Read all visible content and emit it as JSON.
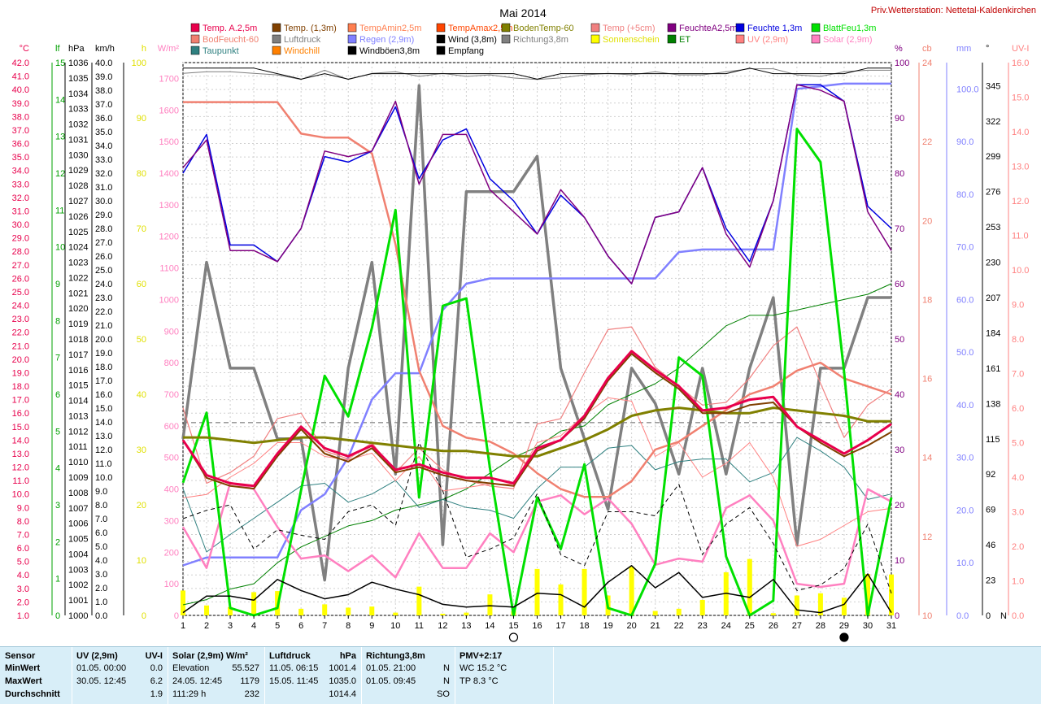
{
  "title": "Mai 2014",
  "station": "Priv.Wetterstation: Nettetal-Kaldenkirchen",
  "colors": {
    "temp_a": "#e8004c",
    "temp13": "#804000",
    "tempmin": "#ff7f50",
    "tempmax": "#ff4500",
    "boden": "#808000",
    "temp5": "#f08080",
    "feuchteA": "#800080",
    "feuchte13": "#0000e0",
    "blatt": "#00e000",
    "bodenfeucht": "#f08070",
    "luftdruck": "#7f7f7f",
    "regen": "#8080ff",
    "wind": "#000000",
    "richtung": "#808080",
    "sonne": "#ffff00",
    "et": "#008000",
    "uv": "#ff8080",
    "solar": "#ff80c0",
    "taupunkt": "#2f8080",
    "windchill": "#ff8000",
    "boeen": "#000000",
    "empfang": "#000000"
  },
  "legend": [
    {
      "label": "Temp. A.2,5m",
      "color": "#e8004c"
    },
    {
      "label": "Temp. (1,3m)",
      "color": "#804000"
    },
    {
      "label": "TempAmin2,5m",
      "color": "#ff7f50"
    },
    {
      "label": "TempAmax2,5m",
      "color": "#ff4500"
    },
    {
      "label": "BodenTemp-60",
      "color": "#808000"
    },
    {
      "label": "Temp (+5cm)",
      "color": "#f08080"
    },
    {
      "label": "FeuchteA2,5m",
      "color": "#800080"
    },
    {
      "label": "Feuchte 1,3m",
      "color": "#0000e0"
    },
    {
      "label": "BlattFeu1,3m",
      "color": "#00e000"
    },
    {
      "label": "BodFeucht-60",
      "color": "#f08070"
    },
    {
      "label": "Luftdruck",
      "color": "#7f7f7f"
    },
    {
      "label": "Regen (2,9m)",
      "color": "#8080ff"
    },
    {
      "label": "Wind (3,8m)",
      "color": "#000000"
    },
    {
      "label": "Richtung3,8m",
      "color": "#808080"
    },
    {
      "label": "Sonnenschein",
      "color": "#ffff00"
    },
    {
      "label": "ET",
      "color": "#008000"
    },
    {
      "label": "UV (2,9m)",
      "color": "#ff8080"
    },
    {
      "label": "Solar (2,9m)",
      "color": "#ff80c0"
    },
    {
      "label": "Taupunkt",
      "color": "#2f8080"
    },
    {
      "label": "Windchill",
      "color": "#ff8000"
    },
    {
      "label": "Windböen3,8m",
      "color": "#000000"
    },
    {
      "label": "Empfang",
      "color": "#000000"
    }
  ],
  "axes": {
    "temp": {
      "unit": "°C",
      "min": 1,
      "max": 42,
      "step": 1,
      "color": "#e8004c",
      "labels": [
        "1.0",
        "2.0",
        "3.0",
        "4.0",
        "5.0",
        "6.0",
        "7.0",
        "8.0",
        "9.0",
        "10.0",
        "11.0",
        "12.0",
        "13.0",
        "14.0",
        "15.0",
        "16.0",
        "17.0",
        "18.0",
        "19.0",
        "20.0",
        "21.0",
        "22.0",
        "23.0",
        "24.0",
        "25.0",
        "26.0",
        "27.0",
        "28.0",
        "29.0",
        "30.0",
        "31.0",
        "32.0",
        "33.0",
        "34.0",
        "35.0",
        "36.0",
        "37.0",
        "38.0",
        "39.0",
        "40.0",
        "41.0",
        "42.0"
      ]
    },
    "lf": {
      "unit": "lf",
      "color": "#00a000",
      "labels": [
        "0",
        "1",
        "2",
        "3",
        "4",
        "5",
        "6",
        "7",
        "8",
        "9",
        "10",
        "11",
        "12",
        "13",
        "14",
        "15"
      ]
    },
    "hpa": {
      "unit": "hPa",
      "min": 1000,
      "max": 1036,
      "color": "#000000",
      "labels": [
        "1000",
        "1001",
        "1002",
        "1003",
        "1004",
        "1005",
        "1006",
        "1007",
        "1008",
        "1009",
        "1010",
        "1011",
        "1012",
        "1013",
        "1014",
        "1015",
        "1016",
        "1017",
        "1018",
        "1019",
        "1020",
        "1021",
        "1022",
        "1023",
        "1024",
        "1025",
        "1026",
        "1027",
        "1028",
        "1029",
        "1030",
        "1031",
        "1032",
        "1033",
        "1034",
        "1035",
        "1036"
      ]
    },
    "kmh": {
      "unit": "km/h",
      "color": "#000000",
      "labels": [
        "0.0",
        "1.0",
        "2.0",
        "3.0",
        "4.0",
        "5.0",
        "6.0",
        "7.0",
        "8.0",
        "9.0",
        "10.0",
        "11.0",
        "12.0",
        "13.0",
        "14.0",
        "15.0",
        "16.0",
        "17.0",
        "18.0",
        "19.0",
        "20.0",
        "21.0",
        "22.0",
        "23.0",
        "24.0",
        "25.0",
        "26.0",
        "27.0",
        "28.0",
        "29.0",
        "30.0",
        "31.0",
        "32.0",
        "33.0",
        "34.0",
        "35.0",
        "36.0",
        "37.0",
        "38.0",
        "39.0",
        "40.0"
      ]
    },
    "h": {
      "unit": "h",
      "color": "#e0e000",
      "labels": [
        "0",
        "10",
        "20",
        "30",
        "40",
        "50",
        "60",
        "70",
        "80",
        "90",
        "100"
      ]
    },
    "wm2": {
      "unit": "W/m²",
      "color": "#ff80c0",
      "labels": [
        "0",
        "100",
        "200",
        "300",
        "400",
        "500",
        "600",
        "700",
        "800",
        "900",
        "1000",
        "1100",
        "1200",
        "1300",
        "1400",
        "1500",
        "1600",
        "1700"
      ]
    },
    "pct": {
      "unit": "%",
      "color": "#800080",
      "labels": [
        "0",
        "10",
        "20",
        "30",
        "40",
        "50",
        "60",
        "70",
        "80",
        "90",
        "100"
      ]
    },
    "cb": {
      "unit": "cb",
      "color": "#f08070",
      "labels": [
        "10",
        "12",
        "14",
        "16",
        "18",
        "20",
        "22",
        "24"
      ]
    },
    "mm": {
      "unit": "mm",
      "color": "#8080ff",
      "labels": [
        "0.0",
        "10.0",
        "20.0",
        "30.0",
        "40.0",
        "50.0",
        "60.0",
        "70.0",
        "80.0",
        "90.0",
        "100.0"
      ]
    },
    "deg": {
      "unit": "°",
      "color": "#000000",
      "labels": [
        "0",
        "23",
        "46",
        "69",
        "92",
        "115",
        "138",
        "161",
        "184",
        "207",
        "230",
        "253",
        "276",
        "299",
        "322",
        "345"
      ],
      "n_label": "N"
    },
    "uvi": {
      "unit": "UV-I",
      "color": "#ff8080",
      "labels": [
        "0.0",
        "1.0",
        "2.0",
        "3.0",
        "4.0",
        "5.0",
        "6.0",
        "7.0",
        "8.0",
        "9.0",
        "10.0",
        "11.0",
        "12.0",
        "13.0",
        "14.0",
        "15.0",
        "16.0"
      ]
    }
  },
  "chart_data": {
    "type": "line",
    "title": "Mai 2014",
    "x_label": "",
    "x": [
      1,
      2,
      3,
      4,
      5,
      6,
      7,
      8,
      9,
      10,
      11,
      12,
      13,
      14,
      15,
      16,
      17,
      18,
      19,
      20,
      21,
      22,
      23,
      24,
      25,
      26,
      27,
      28,
      29,
      30,
      31
    ],
    "moon_symbols": [
      {
        "day": 15,
        "phase": "full"
      },
      {
        "day": 29,
        "phase": "new"
      }
    ],
    "series": [
      {
        "name": "Temp. A.2,5m",
        "axis": "temp",
        "values": [
          14.0,
          11.4,
          10.8,
          10.6,
          13.0,
          15.0,
          13.4,
          12.8,
          13.6,
          11.8,
          12.2,
          11.6,
          11.2,
          11.2,
          10.8,
          13.4,
          14.0,
          15.8,
          18.6,
          20.6,
          19.2,
          18.0,
          16.2,
          16.4,
          17.0,
          17.2,
          15.0,
          14.0,
          13.0,
          14.0,
          15.2
        ]
      },
      {
        "name": "Temp. (1,3m)",
        "axis": "temp",
        "values": [
          14.0,
          11.2,
          10.6,
          10.4,
          12.8,
          14.8,
          13.0,
          12.4,
          13.4,
          11.6,
          12.0,
          11.4,
          11.0,
          10.8,
          10.6,
          13.2,
          14.0,
          15.6,
          18.4,
          20.4,
          19.0,
          17.8,
          16.0,
          16.0,
          16.6,
          16.8,
          15.0,
          13.8,
          12.8,
          13.6,
          14.6
        ]
      },
      {
        "name": "BodenTemp-60",
        "axis": "temp",
        "values": [
          14.2,
          14.2,
          14.0,
          13.8,
          14.0,
          14.2,
          14.2,
          14.0,
          13.8,
          13.6,
          13.4,
          13.2,
          13.2,
          13.0,
          12.8,
          12.8,
          13.4,
          14.0,
          14.8,
          15.8,
          16.2,
          16.4,
          16.2,
          16.0,
          16.0,
          16.4,
          16.2,
          16.0,
          15.8,
          15.4,
          15.4
        ]
      },
      {
        "name": "Temp (+5cm)",
        "axis": "temp",
        "values": [
          16.4,
          10.8,
          11.6,
          12.8,
          15.6,
          16.0,
          13.2,
          12.6,
          13.8,
          11.6,
          13.4,
          11.8,
          11.0,
          10.6,
          10.4,
          15.2,
          15.6,
          19.0,
          22.2,
          22.4,
          19.4,
          18.0,
          16.6,
          16.8,
          18.6,
          21.0,
          22.4,
          18.2,
          14.2,
          16.6,
          17.8
        ]
      },
      {
        "name": "FeuchteA2,5m",
        "axis": "pct",
        "values": [
          81,
          86,
          66,
          66,
          64,
          70,
          84,
          83,
          84,
          93,
          78,
          87,
          87,
          77,
          73,
          69,
          77,
          72,
          65,
          60,
          72,
          73,
          81,
          69,
          63,
          75,
          96,
          95,
          93,
          73,
          66
        ]
      },
      {
        "name": "Feuchte 1,3m",
        "axis": "pct",
        "values": [
          80,
          87,
          67,
          67,
          64,
          70,
          83,
          82,
          84,
          92,
          79,
          86,
          88,
          79,
          75,
          69,
          76,
          72,
          65,
          60,
          72,
          73,
          81,
          70,
          64,
          75,
          96,
          96,
          93,
          74,
          70
        ]
      },
      {
        "name": "BlattFeu1,3m",
        "axis": "lf",
        "values": [
          3.6,
          5.5,
          0.2,
          0.0,
          0.2,
          3.4,
          6.5,
          5.4,
          7.8,
          11.0,
          3.2,
          8.4,
          8.6,
          4.0,
          0.0,
          3.2,
          1.8,
          4.1,
          0.2,
          0.0,
          1.4,
          7.0,
          6.5,
          1.6,
          0.0,
          0.4,
          13.2,
          12.3,
          6.6,
          0.0,
          3.2
        ]
      },
      {
        "name": "BodFeucht-60",
        "axis": "cb",
        "values": [
          23,
          23,
          23,
          23,
          23,
          22.2,
          22.1,
          22.1,
          21.7,
          19.4,
          16.2,
          14.8,
          14.5,
          14.4,
          14.1,
          13.6,
          13.2,
          13.0,
          13.0,
          13.4,
          14.2,
          14.4,
          14.8,
          15.2,
          15.6,
          15.8,
          16.2,
          16.4,
          16.0,
          15.8,
          15.6
        ]
      },
      {
        "name": "Luftdruck",
        "axis": "hpa",
        "values": [
          1035.3,
          1035.4,
          1035.4,
          1035.3,
          1035.2,
          1034.9,
          1035.5,
          1034.9,
          1035.3,
          1035.4,
          1035.1,
          1035.3,
          1035.1,
          1035.2,
          1035.0,
          1034.9,
          1035.0,
          1035.2,
          1035.3,
          1035.2,
          1035.4,
          1035.2,
          1035.2,
          1035.4,
          1035.6,
          1035.6,
          1035.2,
          1035.1,
          1035.4,
          1035.5,
          1035.5
        ]
      },
      {
        "name": "Regen (2,9m)",
        "axis": "mm",
        "values": [
          9.5,
          11.0,
          11.0,
          11.0,
          11.0,
          20.0,
          23.0,
          30.0,
          41.0,
          46.0,
          46.0,
          58.0,
          63.0,
          64.0,
          64.0,
          64.0,
          64.0,
          64.0,
          64.0,
          64.0,
          64.0,
          69.0,
          69.5,
          69.5,
          69.5,
          69.5,
          100.0,
          100.5,
          101.0,
          101.0,
          101.0
        ]
      },
      {
        "name": "Wind (3,8m)",
        "axis": "kmh",
        "values": [
          0.2,
          1.4,
          1.4,
          1.1,
          2.6,
          1.8,
          1.2,
          1.5,
          2.4,
          1.9,
          1.5,
          0.8,
          0.6,
          0.7,
          0.6,
          1.6,
          1.5,
          0.6,
          2.4,
          3.6,
          2.0,
          3.1,
          1.3,
          1.6,
          1.3,
          2.6,
          0.4,
          0.2,
          0.8,
          3.0,
          0.2
        ]
      },
      {
        "name": "Windböen3,8m",
        "axis": "kmh",
        "values": [
          7.0,
          7.6,
          8.0,
          4.8,
          6.2,
          5.8,
          5.5,
          7.5,
          8.0,
          6.5,
          12.5,
          9.0,
          4.2,
          4.8,
          5.6,
          8.8,
          4.4,
          3.6,
          7.5,
          7.5,
          7.2,
          9.5,
          4.4,
          6.6,
          7.8,
          5.2,
          1.8,
          2.2,
          3.4,
          6.6,
          1.6
        ]
      },
      {
        "name": "Richtung3,8m",
        "axis": "deg",
        "values": [
          115,
          230,
          161,
          161,
          115,
          115,
          23,
          161,
          230,
          92,
          345,
          46,
          276,
          276,
          276,
          299,
          161,
          115,
          69,
          161,
          138,
          92,
          161,
          92,
          161,
          207,
          46,
          161,
          161,
          207,
          207
        ]
      },
      {
        "name": "Sonnenschein",
        "axis": "h",
        "type": "bar",
        "values": [
          4.5,
          1.8,
          1.5,
          4.2,
          4.4,
          1.2,
          2.0,
          1.4,
          1.6,
          0.5,
          5.2,
          0.3,
          0.5,
          3.8,
          0.8,
          8.4,
          5.6,
          8.4,
          3.6,
          8.8,
          0.8,
          1.2,
          2.8,
          7.8,
          10.2,
          0.4,
          3.6,
          4.0,
          3.2,
          7.5,
          7.4
        ]
      },
      {
        "name": "ET",
        "axis": "mm",
        "values": [
          2,
          3,
          5,
          6,
          10,
          13,
          15,
          17,
          18,
          20,
          21,
          22,
          24,
          27,
          30,
          32,
          35,
          36,
          40,
          42,
          44,
          47,
          51,
          55,
          57,
          57,
          58,
          59,
          60,
          61,
          63
        ]
      },
      {
        "name": "UV (2,9m)",
        "axis": "uvi",
        "values": [
          3.4,
          3.5,
          4.0,
          4.4,
          5.0,
          5.0,
          4.6,
          4.5,
          4.7,
          3.9,
          4.6,
          3.6,
          3.7,
          3.8,
          3.8,
          5.0,
          5.2,
          5.8,
          6.3,
          6.2,
          4.6,
          5.0,
          4.0,
          4.4,
          5.0,
          4.0,
          2.0,
          2.2,
          2.6,
          3.0,
          3.1
        ]
      },
      {
        "name": "Solar (2,9m)",
        "axis": "wm2",
        "values": [
          280,
          150,
          420,
          400,
          280,
          180,
          190,
          140,
          190,
          120,
          260,
          150,
          150,
          260,
          200,
          360,
          380,
          320,
          370,
          290,
          160,
          180,
          170,
          340,
          380,
          300,
          100,
          90,
          100,
          400,
          360
        ]
      },
      {
        "name": "Taupunkt",
        "axis": "temp",
        "values": [
          10.4,
          5.7,
          7.0,
          8.2,
          9.4,
          10.6,
          10.8,
          9.4,
          10.0,
          11.0,
          9.0,
          9.6,
          9.0,
          8.8,
          8.2,
          10.4,
          12.0,
          12.0,
          13.4,
          13.6,
          11.8,
          12.4,
          12.6,
          12.6,
          10.9,
          11.6,
          14.2,
          13.2,
          12.0,
          9.6,
          10.0
        ]
      },
      {
        "name": "Empfang",
        "axis": "pct",
        "values": [
          99,
          99,
          99,
          99,
          98,
          97,
          98,
          97,
          98,
          98,
          98,
          98,
          98,
          98,
          98,
          97,
          98,
          98,
          98,
          98,
          98,
          98,
          98,
          98,
          99,
          98,
          98,
          98,
          98,
          99,
          99
        ]
      }
    ]
  },
  "footer": {
    "columns": [
      {
        "header": "Sensor",
        "rows": [
          "MinWert",
          "MaxWert",
          "Durchschnitt"
        ]
      },
      {
        "header": "UV (2,9m)",
        "header_right": "UV-I",
        "rows": [
          [
            "01.05.  00:00",
            "0.0"
          ],
          [
            "30.05.  12:45",
            "6.2"
          ],
          [
            "",
            "1.9"
          ]
        ]
      },
      {
        "header": "Solar (2,9m) W/m²",
        "header_right": "",
        "rows": [
          [
            "Elevation",
            "55.527"
          ],
          [
            "24.05.  12:45",
            "1179"
          ],
          [
            "111:29 h",
            "232"
          ]
        ]
      },
      {
        "header": "Luftdruck",
        "header_right": "hPa",
        "rows": [
          [
            "11.05.  06:15",
            "1001.4"
          ],
          [
            "15.05.  11:45",
            "1035.0"
          ],
          [
            "",
            "1014.4"
          ]
        ]
      },
      {
        "header": "Richtung3,8m",
        "header_right": "",
        "rows": [
          [
            "01.05.  21:00",
            "N"
          ],
          [
            "01.05.  09:45",
            "N"
          ],
          [
            "",
            "SO"
          ]
        ]
      },
      {
        "header": "PMV+2:17",
        "header_right": "",
        "rows": [
          [
            "WC 15.2 °C",
            ""
          ],
          [
            "TP 8.3 °C",
            ""
          ],
          [
            "",
            ""
          ]
        ]
      }
    ]
  }
}
